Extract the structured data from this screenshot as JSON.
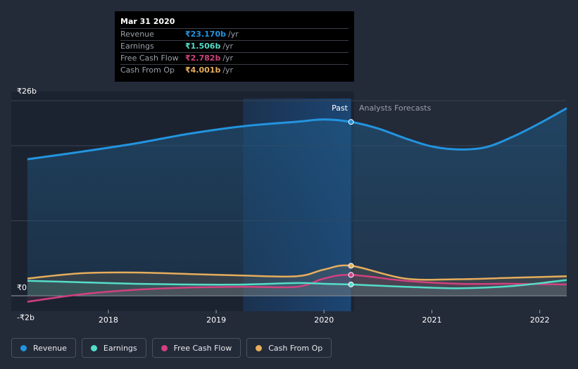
{
  "colors": {
    "revenue": "#2394df",
    "earnings": "#55ddc8",
    "fcf": "#d0417f",
    "cfo": "#e6ad5c"
  },
  "tooltip": {
    "title": "Mar 31 2020",
    "unit": "/yr",
    "rows": [
      {
        "label": "Revenue",
        "value": "₹23.170b"
      },
      {
        "label": "Earnings",
        "value": "₹1.506b"
      },
      {
        "label": "Free Cash Flow",
        "value": "₹2.782b"
      },
      {
        "label": "Cash From Op",
        "value": "₹4.001b"
      }
    ]
  },
  "labels": {
    "past": "Past",
    "forecast": "Analysts Forecasts"
  },
  "legend": [
    {
      "label": "Revenue",
      "key": "revenue"
    },
    {
      "label": "Earnings",
      "key": "earnings"
    },
    {
      "label": "Free Cash Flow",
      "key": "fcf"
    },
    {
      "label": "Cash From Op",
      "key": "cfo"
    }
  ],
  "chart_data": {
    "type": "line",
    "unit": "₹b",
    "ylim": [
      -2,
      26
    ],
    "y_tick_labels": [
      {
        "value": 26,
        "label": "₹26b"
      },
      {
        "value": 0,
        "label": "₹0"
      },
      {
        "value": -2,
        "label": "-₹2b"
      }
    ],
    "x_ticks": [
      {
        "value": 2018,
        "label": "2018"
      },
      {
        "value": 2019,
        "label": "2019"
      },
      {
        "value": 2020,
        "label": "2020"
      },
      {
        "value": 2021,
        "label": "2021"
      },
      {
        "value": 2022,
        "label": "2022"
      }
    ],
    "xlim": [
      2017.1,
      2022.25
    ],
    "past_end": 2020.25,
    "highlight_start": 2019.25,
    "gridlines": [
      26,
      20,
      10,
      0
    ],
    "series": [
      {
        "name": "Revenue",
        "key": "revenue",
        "x": [
          2017.25,
          2017.75,
          2018.25,
          2018.75,
          2019.25,
          2019.75,
          2020.0,
          2020.25,
          2020.5,
          2020.75,
          2021.0,
          2021.25,
          2021.5,
          2021.75,
          2022.0,
          2022.25
        ],
        "values": [
          18.2,
          19.2,
          20.3,
          21.6,
          22.6,
          23.2,
          23.5,
          23.17,
          22.3,
          21.0,
          19.9,
          19.5,
          19.8,
          21.2,
          23.0,
          25.0
        ]
      },
      {
        "name": "Earnings",
        "key": "earnings",
        "x": [
          2017.25,
          2017.75,
          2018.25,
          2018.75,
          2019.25,
          2019.75,
          2020.0,
          2020.25,
          2020.75,
          2021.25,
          2021.75,
          2022.25
        ],
        "values": [
          2.0,
          1.8,
          1.6,
          1.5,
          1.5,
          1.7,
          1.6,
          1.506,
          1.2,
          1.0,
          1.3,
          2.1
        ]
      },
      {
        "name": "Free Cash Flow",
        "key": "fcf",
        "x": [
          2017.25,
          2017.75,
          2018.25,
          2018.75,
          2019.25,
          2019.75,
          2020.0,
          2020.25,
          2020.75,
          2021.25,
          2021.75,
          2022.25
        ],
        "values": [
          -0.8,
          0.2,
          0.8,
          1.1,
          1.2,
          1.2,
          2.3,
          2.782,
          2.0,
          1.6,
          1.6,
          1.5
        ]
      },
      {
        "name": "Cash From Op",
        "key": "cfo",
        "x": [
          2017.25,
          2017.75,
          2018.25,
          2018.75,
          2019.25,
          2019.75,
          2020.0,
          2020.25,
          2020.75,
          2021.25,
          2021.75,
          2022.25
        ],
        "values": [
          2.3,
          3.0,
          3.1,
          2.9,
          2.7,
          2.6,
          3.5,
          4.001,
          2.3,
          2.2,
          2.4,
          2.6
        ]
      }
    ]
  }
}
